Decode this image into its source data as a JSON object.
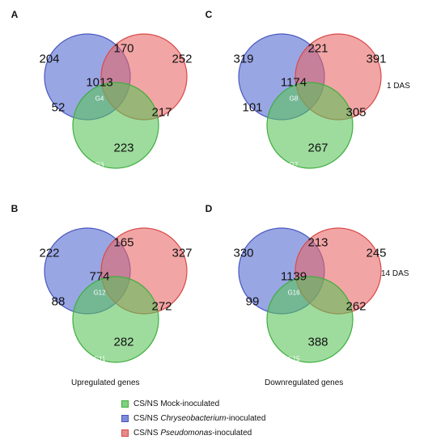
{
  "colors": {
    "blue_fill": "#5b6fd4",
    "blue_stroke": "#4a58c0",
    "red_fill": "#e86464",
    "red_stroke": "#d84a4a",
    "green_fill": "#58c258",
    "green_stroke": "#3fae3f"
  },
  "panels": [
    {
      "letter": "A",
      "regions": {
        "blue_only": "204",
        "red_only": "252",
        "green_only": "223",
        "blue_red": "170",
        "blue_green": "52",
        "red_green": "217",
        "all": "1013"
      },
      "groups": {
        "blue": "G1",
        "red": "G2",
        "green": "G3",
        "center": "G4"
      }
    },
    {
      "letter": "C",
      "regions": {
        "blue_only": "319",
        "red_only": "391",
        "green_only": "267",
        "blue_red": "221",
        "blue_green": "101",
        "red_green": "305",
        "all": "1174"
      },
      "groups": {
        "blue": "G5",
        "red": "G6",
        "green": "G7",
        "center": "G8"
      }
    },
    {
      "letter": "B",
      "regions": {
        "blue_only": "222",
        "red_only": "327",
        "green_only": "282",
        "blue_red": "165",
        "blue_green": "88",
        "red_green": "272",
        "all": "774"
      },
      "groups": {
        "blue": "G9",
        "red": "G10",
        "green": "G11",
        "center": "G12"
      }
    },
    {
      "letter": "D",
      "regions": {
        "blue_only": "330",
        "red_only": "245",
        "green_only": "388",
        "blue_red": "213",
        "blue_green": "99",
        "red_green": "262",
        "all": "1139"
      },
      "groups": {
        "blue": "G13",
        "red": "G14",
        "green": "G15",
        "center": "G16"
      }
    }
  ],
  "row_labels": {
    "top": "1 DAS",
    "bottom": "14 DAS"
  },
  "column_captions": {
    "left": "Upregulated genes",
    "right": "Downregulated genes"
  },
  "legend": {
    "mock": {
      "prefix": "CS/NS Mock-inoculated",
      "italic": "",
      "suffix": ""
    },
    "chryseo": {
      "prefix": "CS/NS ",
      "italic": "Chryseobacterium",
      "suffix": "-inoculated"
    },
    "pseudo": {
      "prefix": "CS/NS ",
      "italic": "Pseudomonas",
      "suffix": "-inoculated"
    }
  }
}
